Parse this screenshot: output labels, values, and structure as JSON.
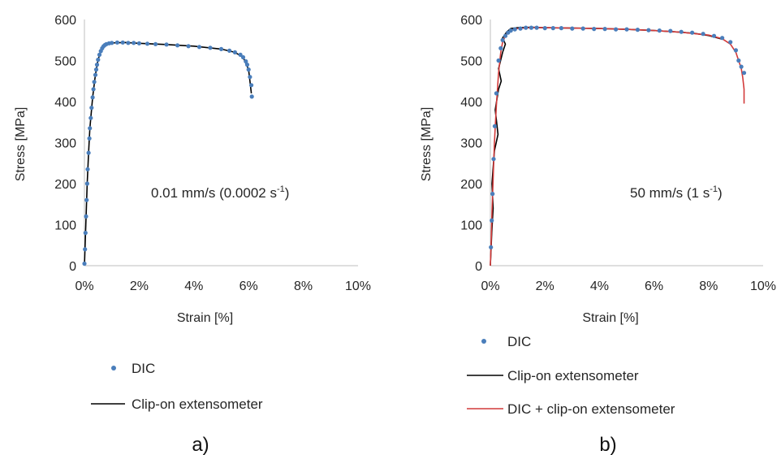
{
  "chart_data": [
    {
      "type": "scatter",
      "panel_label": "a)",
      "xlabel": "Strain [%]",
      "ylabel": "Stress [MPa]",
      "xlim": [
        0,
        10
      ],
      "ylim": [
        0,
        600
      ],
      "x_ticks": [
        "0%",
        "2%",
        "4%",
        "6%",
        "8%",
        "10%"
      ],
      "y_ticks": [
        "0",
        "100",
        "200",
        "300",
        "400",
        "500",
        "600"
      ],
      "annotation": {
        "text": "0.01 mm/s (0.0002 s",
        "superscript": "-1",
        "suffix": ")"
      },
      "grid": false,
      "legend_position": "below",
      "series": [
        {
          "name": "DIC",
          "style": "markers",
          "color": "#4a7ebb",
          "x": [
            0.0,
            0.02,
            0.04,
            0.06,
            0.08,
            0.1,
            0.12,
            0.15,
            0.18,
            0.2,
            0.23,
            0.26,
            0.3,
            0.33,
            0.36,
            0.4,
            0.43,
            0.46,
            0.5,
            0.55,
            0.6,
            0.65,
            0.7,
            0.75,
            0.8,
            0.9,
            1.0,
            1.2,
            1.4,
            1.6,
            1.8,
            2.0,
            2.3,
            2.6,
            3.0,
            3.4,
            3.8,
            4.2,
            4.6,
            5.0,
            5.3,
            5.5,
            5.7,
            5.8,
            5.9,
            5.95,
            6.0,
            6.05,
            6.1,
            6.12
          ],
          "y": [
            5,
            40,
            80,
            120,
            160,
            200,
            235,
            275,
            310,
            335,
            360,
            385,
            410,
            430,
            448,
            465,
            478,
            490,
            502,
            514,
            523,
            530,
            535,
            538,
            540,
            542,
            543,
            544,
            544,
            543,
            543,
            542,
            541,
            540,
            539,
            537,
            535,
            533,
            531,
            528,
            524,
            520,
            514,
            508,
            498,
            490,
            478,
            460,
            440,
            412
          ]
        },
        {
          "name": "Clip-on extensometer",
          "style": "line",
          "color": "#000000",
          "x": [
            0.0,
            0.05,
            0.1,
            0.15,
            0.2,
            0.3,
            0.4,
            0.5,
            0.6,
            0.7,
            0.8,
            1.0,
            1.5,
            2.0,
            3.0,
            4.0,
            5.0,
            5.5,
            5.8,
            6.0,
            6.1
          ],
          "y": [
            0,
            100,
            200,
            275,
            335,
            410,
            465,
            502,
            523,
            535,
            540,
            543,
            544,
            542,
            539,
            535,
            528,
            520,
            508,
            478,
            420
          ]
        }
      ]
    },
    {
      "type": "scatter",
      "panel_label": "b)",
      "xlabel": "Strain [%]",
      "ylabel": "Stress [MPa]",
      "xlim": [
        0,
        10
      ],
      "ylim": [
        0,
        600
      ],
      "x_ticks": [
        "0%",
        "2%",
        "4%",
        "6%",
        "8%",
        "10%"
      ],
      "y_ticks": [
        "0",
        "100",
        "200",
        "300",
        "400",
        "500",
        "600"
      ],
      "annotation": {
        "text": "50 mm/s (1 s",
        "superscript": "-1",
        "suffix": ")"
      },
      "grid": false,
      "legend_position": "below",
      "series": [
        {
          "name": "DIC",
          "style": "markers",
          "color": "#4a7ebb",
          "x": [
            0.02,
            0.05,
            0.08,
            0.12,
            0.16,
            0.22,
            0.3,
            0.38,
            0.45,
            0.55,
            0.65,
            0.75,
            0.9,
            1.1,
            1.3,
            1.5,
            1.7,
            2.0,
            2.3,
            2.6,
            3.0,
            3.4,
            3.8,
            4.2,
            4.6,
            5.0,
            5.4,
            5.8,
            6.2,
            6.6,
            7.0,
            7.4,
            7.8,
            8.2,
            8.5,
            8.8,
            9.0,
            9.1,
            9.2,
            9.3
          ],
          "y": [
            45,
            110,
            175,
            260,
            340,
            420,
            500,
            530,
            550,
            560,
            568,
            573,
            576,
            578,
            580,
            580,
            580,
            579,
            579,
            579,
            578,
            578,
            577,
            577,
            576,
            576,
            575,
            574,
            573,
            572,
            570,
            568,
            565,
            560,
            555,
            545,
            525,
            500,
            485,
            470
          ]
        },
        {
          "name": "Clip-on extensometer",
          "style": "line",
          "color": "#000000",
          "x": [
            0.0,
            0.05,
            0.1,
            0.06,
            0.15,
            0.28,
            0.18,
            0.3,
            0.4,
            0.3,
            0.45,
            0.55,
            0.45,
            0.6,
            0.75,
            1.0,
            1.5,
            2.0,
            3.0,
            4.0,
            5.0,
            6.0,
            7.0,
            7.5,
            8.0,
            8.5
          ],
          "y": [
            0,
            80,
            140,
            200,
            280,
            320,
            380,
            430,
            450,
            480,
            520,
            540,
            555,
            570,
            578,
            580,
            581,
            580,
            579,
            578,
            576,
            573,
            569,
            566,
            561,
            552
          ]
        },
        {
          "name": "DIC + clip-on extensometer",
          "style": "line",
          "color": "#d23a3a",
          "x": [
            0.0,
            0.03,
            0.06,
            0.1,
            0.15,
            0.22,
            0.3,
            0.38,
            0.45,
            0.55,
            0.65,
            0.8,
            1.0,
            1.5,
            2.0,
            3.0,
            4.0,
            5.0,
            6.0,
            7.0,
            8.0,
            8.5,
            8.8,
            9.0,
            9.1,
            9.2,
            9.25,
            9.3,
            9.3
          ],
          "y": [
            0,
            60,
            130,
            210,
            300,
            390,
            470,
            520,
            545,
            560,
            568,
            575,
            578,
            580,
            580,
            579,
            578,
            576,
            573,
            569,
            562,
            553,
            540,
            520,
            500,
            480,
            460,
            430,
            395
          ]
        }
      ]
    }
  ]
}
